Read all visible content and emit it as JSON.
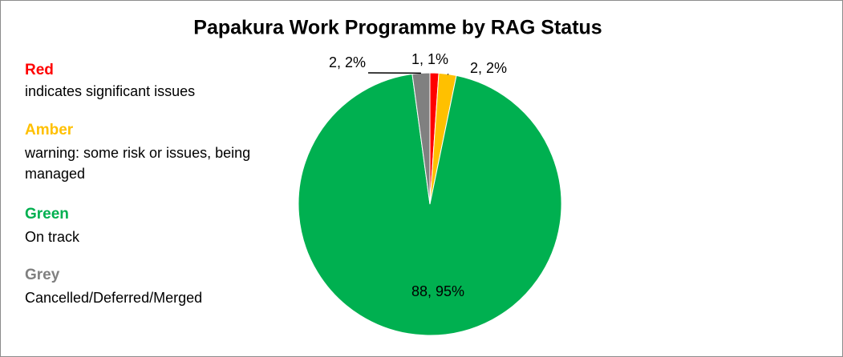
{
  "chart_data": {
    "type": "pie",
    "title": "Papakura Work Programme by RAG Status",
    "categories": [
      "Red",
      "Amber",
      "Green",
      "Grey"
    ],
    "descriptions": [
      "indicates significant issues",
      "warning:  some risk or issues, being managed",
      "On track",
      "Cancelled/Deferred/Merged"
    ],
    "values": [
      1,
      2,
      88,
      2
    ],
    "value_labels": [
      "1, 1%",
      "2, 2%",
      "88, 95%",
      "2, 2%"
    ],
    "colors": [
      "#ff0000",
      "#ffc000",
      "#00b050",
      "#808080"
    ]
  }
}
